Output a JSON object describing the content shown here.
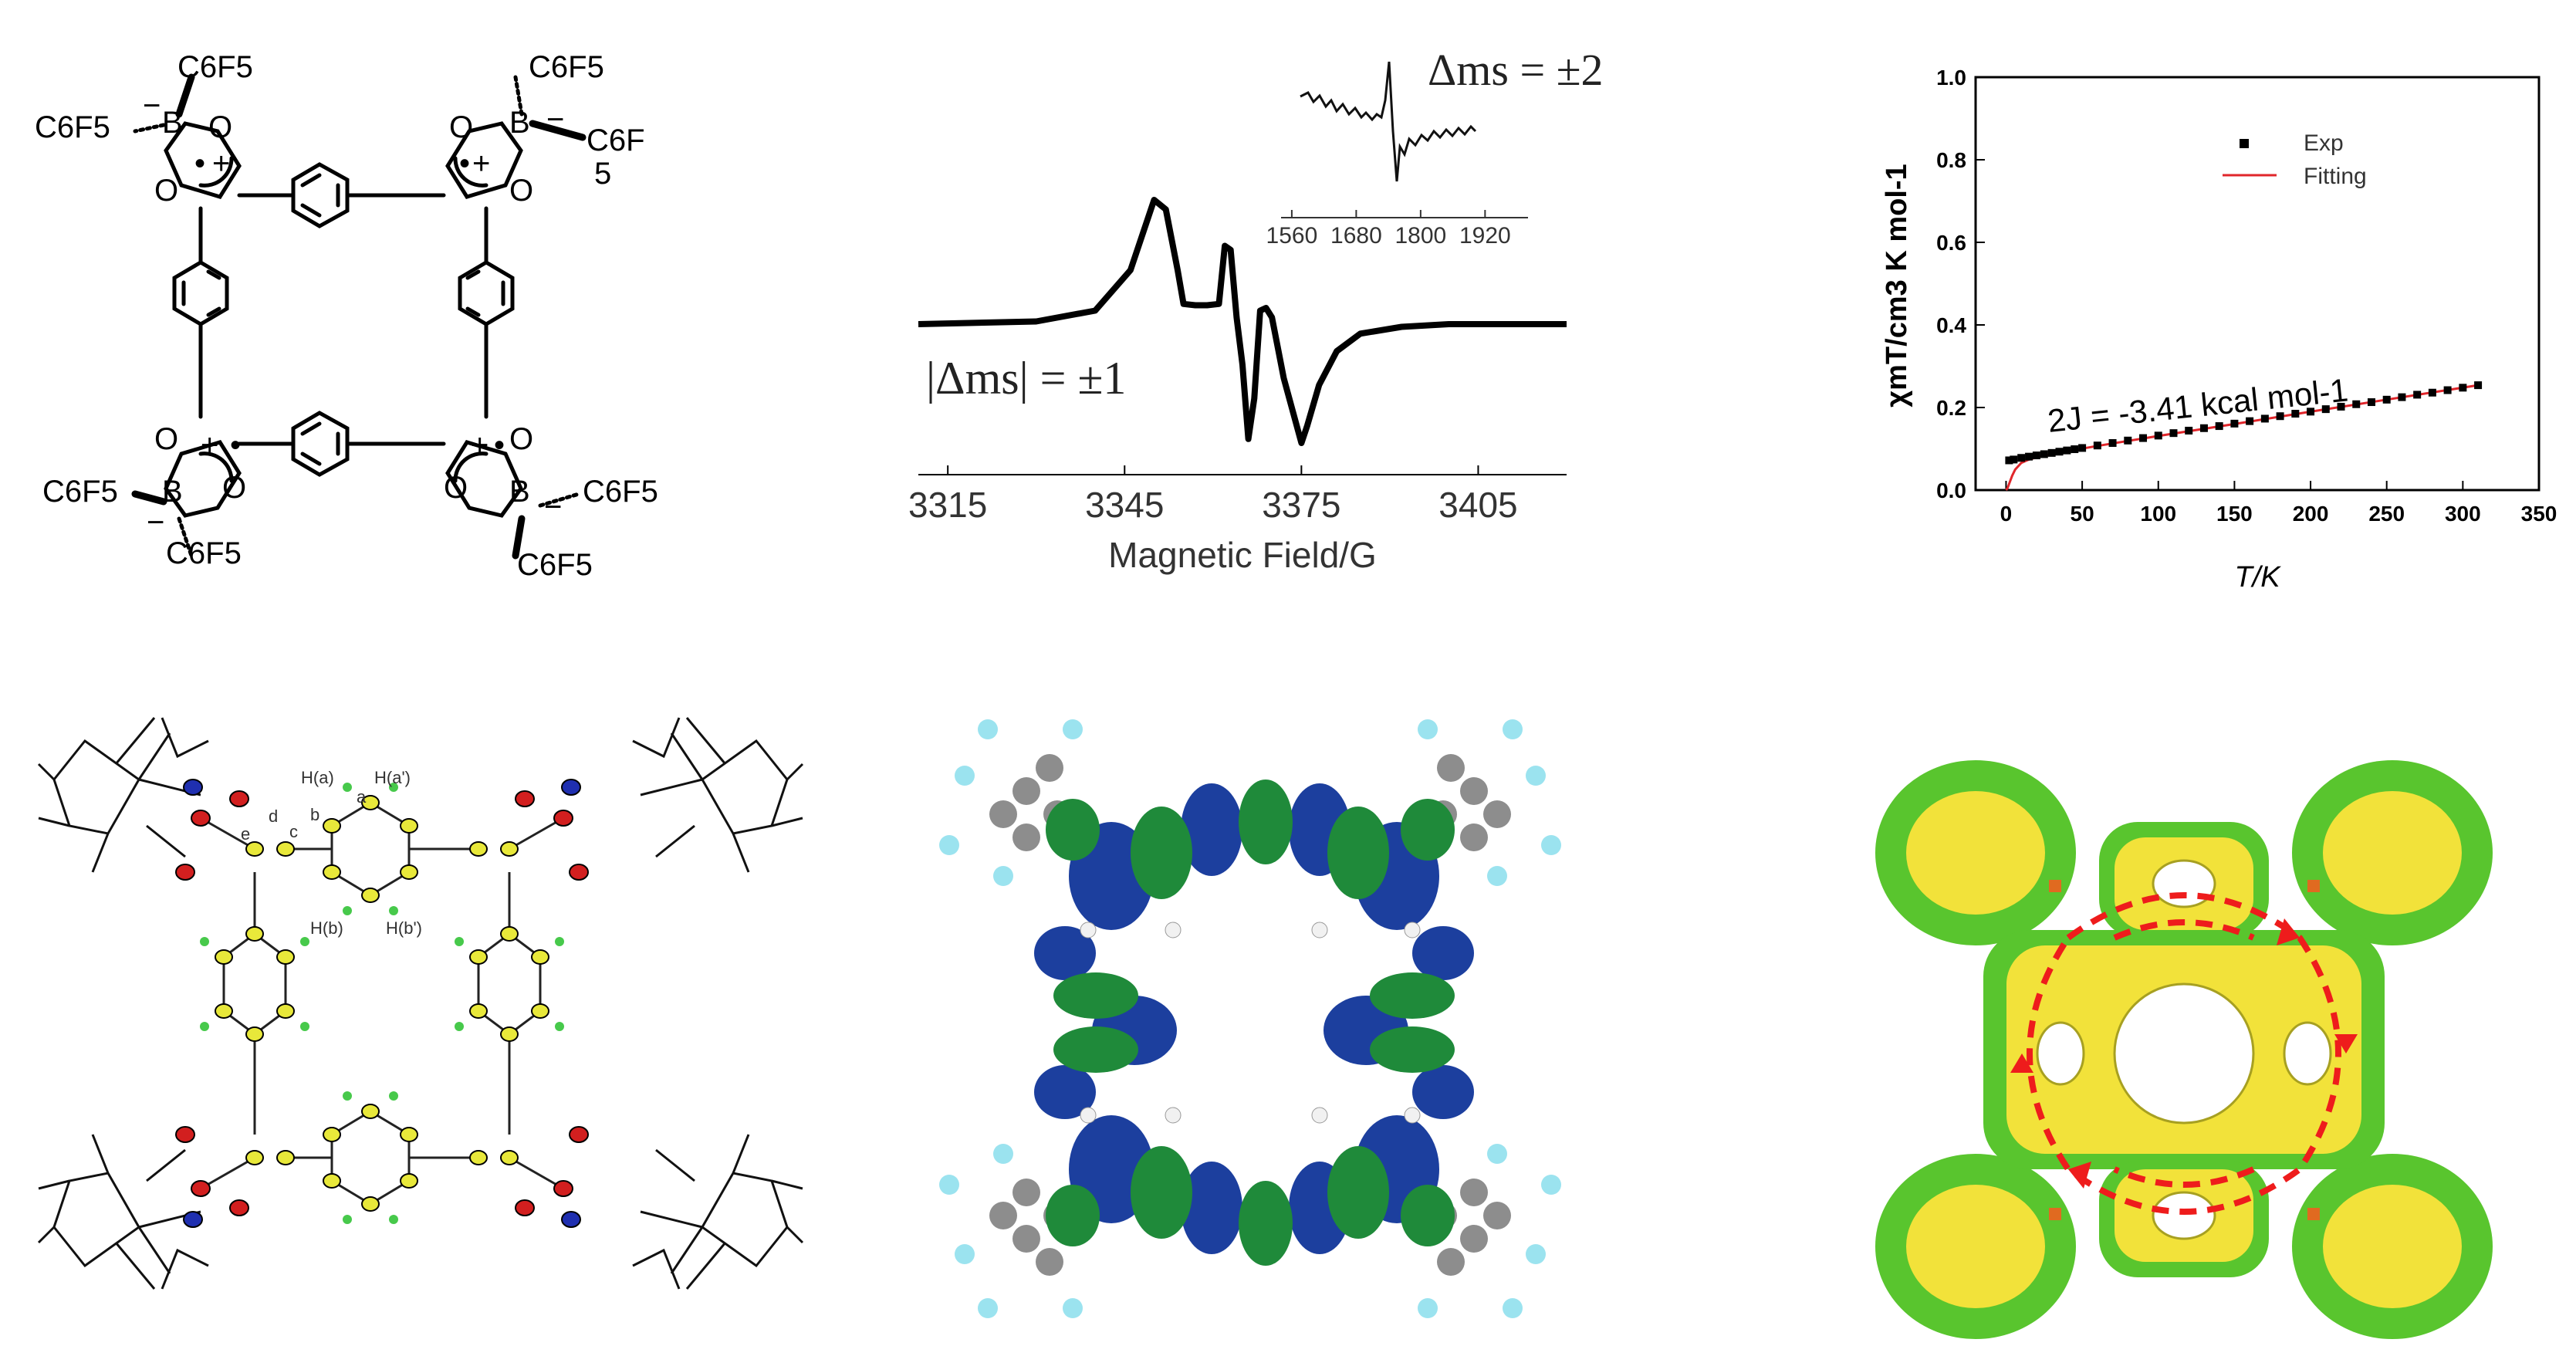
{
  "structure": {
    "c6f5": "C6F5",
    "c6f": "C6F",
    "five": "5",
    "boron": "B",
    "oxygen": "O",
    "minus": "−",
    "plus": "+",
    "radical": "•"
  },
  "chart_data": [
    {
      "type": "line",
      "xlabel": "Magnetic Field/G",
      "ylabel": "",
      "x_ticks": [
        3315,
        3345,
        3375,
        3405
      ],
      "xlim": [
        3310,
        3420
      ],
      "annotations": [
        "|Δms| = ±1",
        "Δms = ±2"
      ],
      "inset": {
        "x_ticks": [
          1560,
          1680,
          1800,
          1920
        ],
        "xlim": [
          1540,
          2000
        ]
      },
      "series": [
        {
          "x": [
            3310,
            3330,
            3340,
            3346,
            3350,
            3352,
            3354,
            3355,
            3357,
            3359,
            3361,
            3362,
            3363,
            3364,
            3365,
            3366,
            3367,
            3368,
            3369,
            3370,
            3372,
            3375,
            3376,
            3378,
            3381,
            3385,
            3392,
            3400,
            3420
          ],
          "y": [
            0.0,
            0.02,
            0.1,
            0.4,
            0.92,
            0.85,
            0.4,
            0.15,
            0.14,
            0.14,
            0.15,
            0.58,
            0.55,
            0.05,
            -0.3,
            -0.85,
            -0.55,
            0.1,
            0.12,
            0.05,
            -0.4,
            -0.88,
            -0.75,
            -0.45,
            -0.2,
            -0.07,
            -0.02,
            0.0,
            0.0
          ]
        }
      ]
    },
    {
      "type": "scatter",
      "xlabel": "T/K",
      "ylabel": "χmT/cm3 K mol-1",
      "xlim": [
        -20,
        350
      ],
      "ylim": [
        0.0,
        1.0
      ],
      "x_ticks": [
        0,
        50,
        100,
        150,
        200,
        250,
        300,
        350
      ],
      "y_ticks": [
        0.0,
        0.2,
        0.4,
        0.6,
        0.8,
        1.0
      ],
      "legend": {
        "placement": "top-right",
        "entries": [
          "Exp",
          "Fitting"
        ]
      },
      "annotation": "2J = -3.41 kcal mol-1",
      "series": [
        {
          "name": "Exp",
          "x": [
            2,
            5,
            10,
            15,
            20,
            25,
            30,
            35,
            40,
            45,
            50,
            60,
            70,
            80,
            90,
            100,
            110,
            120,
            130,
            140,
            150,
            160,
            170,
            180,
            190,
            200,
            210,
            220,
            230,
            240,
            250,
            260,
            270,
            280,
            290,
            300,
            310
          ],
          "y": [
            0.072,
            0.074,
            0.078,
            0.081,
            0.084,
            0.087,
            0.09,
            0.093,
            0.096,
            0.099,
            0.102,
            0.108,
            0.114,
            0.12,
            0.126,
            0.132,
            0.138,
            0.144,
            0.15,
            0.155,
            0.161,
            0.167,
            0.173,
            0.179,
            0.185,
            0.19,
            0.196,
            0.202,
            0.208,
            0.213,
            0.219,
            0.225,
            0.231,
            0.236,
            0.242,
            0.248,
            0.254
          ],
          "color": "#000000"
        },
        {
          "name": "Fitting",
          "x": [
            0,
            1,
            2,
            4,
            6,
            10,
            15,
            20,
            30,
            40,
            60,
            80,
            100,
            150,
            200,
            250,
            310
          ],
          "y": [
            0.0,
            0.005,
            0.015,
            0.035,
            0.05,
            0.066,
            0.074,
            0.079,
            0.087,
            0.094,
            0.107,
            0.119,
            0.131,
            0.16,
            0.19,
            0.219,
            0.254
          ],
          "color": "#e0262b"
        }
      ]
    }
  ],
  "crystal": {
    "labels": [
      "H(a)",
      "H(a')",
      "a",
      "b",
      "c",
      "d",
      "e",
      "H(b)",
      "H(b')"
    ]
  },
  "colors": {
    "orbital_blue": "#1c3f9e",
    "orbital_green": "#1f8a3a",
    "carbon_yellow": "#e8e83a",
    "oxygen_red": "#d21f1f",
    "nitrogen_blue": "#1f2fb0",
    "hydrogen_green": "#47c94b",
    "arrow_red": "#ee1c1c",
    "foliage_green": "#59c52e",
    "foliage_yellow": "#f2e23a",
    "boron_orange": "#e06a20",
    "fluorine_cyan": "#9be3ef",
    "grey_carbon": "#8d8d8d"
  }
}
